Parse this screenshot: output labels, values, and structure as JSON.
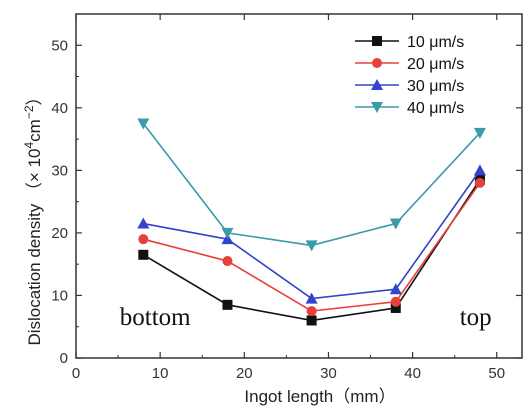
{
  "chart_data": {
    "type": "line",
    "title": "",
    "xlabel": "Ingot length（mm）",
    "ylabel": "Dislocation density",
    "ylabel_unit": "（× 10",
    "ylabel_unit_exp": "4",
    "ylabel_unit_mid": "cm",
    "ylabel_unit_exp2": "−2",
    "ylabel_unit_end": "）",
    "xlim": [
      0,
      53
    ],
    "ylim": [
      0,
      55
    ],
    "xticks": [
      0,
      10,
      20,
      30,
      40,
      50
    ],
    "yticks": [
      0,
      10,
      20,
      30,
      40,
      50
    ],
    "grid": false,
    "legend_position": "top-right",
    "x": [
      8,
      18,
      28,
      38,
      48
    ],
    "series": [
      {
        "name": "10 μm/s",
        "color": "#111111",
        "marker": "square",
        "values": [
          16.5,
          8.5,
          6,
          8,
          28.5
        ]
      },
      {
        "name": "20 μm/s",
        "color": "#e8403a",
        "marker": "circle",
        "values": [
          19,
          15.5,
          7.5,
          9,
          28
        ]
      },
      {
        "name": "30 μm/s",
        "color": "#3344cc",
        "marker": "triangle-up",
        "values": [
          21.5,
          19,
          9.5,
          11,
          30
        ]
      },
      {
        "name": "40 μm/s",
        "color": "#3a9aa8",
        "marker": "triangle-down",
        "values": [
          37.5,
          20,
          18,
          21.5,
          36
        ]
      }
    ],
    "annotations": [
      {
        "text": "bottom",
        "x": 5.2,
        "y": 5.3
      },
      {
        "text": "top",
        "x": 45.6,
        "y": 5.3
      }
    ]
  }
}
